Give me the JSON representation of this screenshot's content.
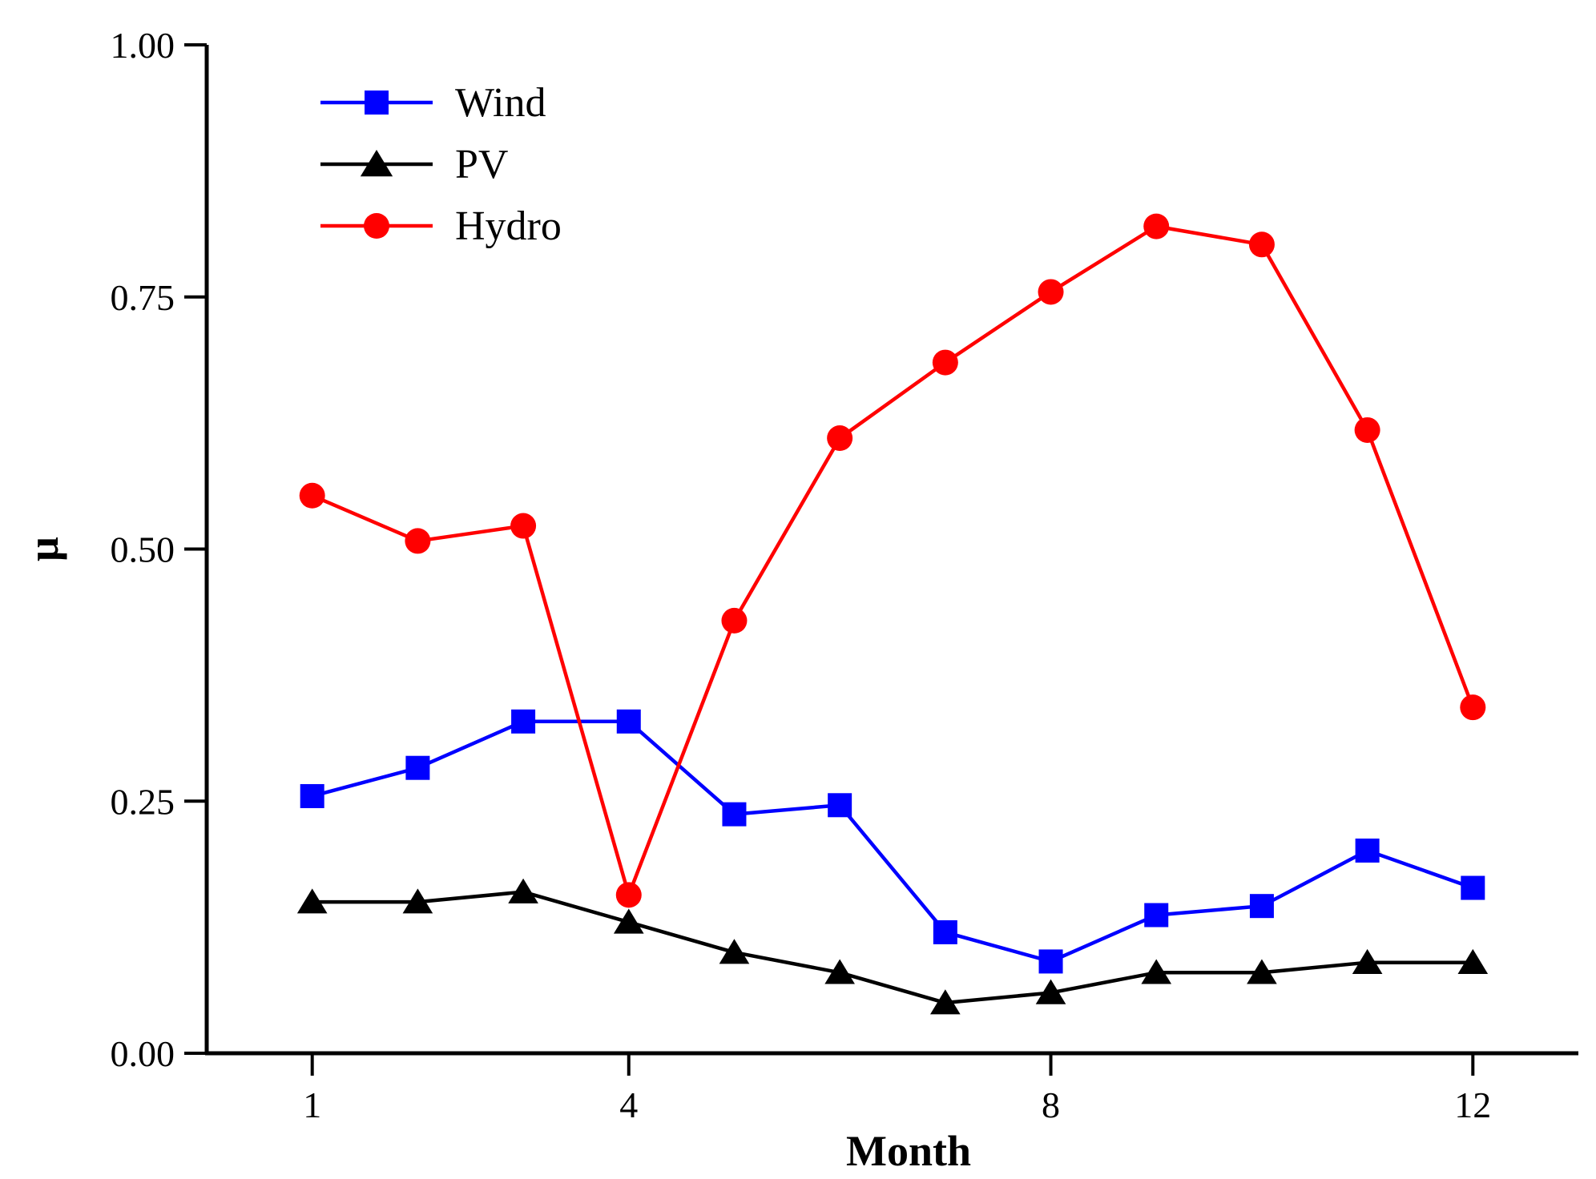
{
  "chart_data": {
    "type": "line",
    "title": "",
    "xlabel": "Month",
    "ylabel": "μ",
    "xlim": [
      0,
      13
    ],
    "ylim": [
      0,
      1
    ],
    "x_ticks": [
      1,
      4,
      8,
      12
    ],
    "x_tick_labels": [
      "1",
      "4",
      "8",
      "12"
    ],
    "y_ticks": [
      0,
      0.25,
      0.5,
      0.75,
      1.0
    ],
    "y_tick_labels": [
      "0.00",
      "0.25",
      "0.50",
      "0.75",
      "1.00"
    ],
    "grid": false,
    "legend_position": "top-left",
    "x": [
      1,
      2,
      3,
      4,
      5,
      6,
      7,
      8,
      9,
      10,
      11,
      12
    ],
    "series": [
      {
        "name": "Wind",
        "color": "#0000ff",
        "marker": "square",
        "values": [
          0.255,
          0.283,
          0.329,
          0.329,
          0.237,
          0.246,
          0.12,
          0.091,
          0.137,
          0.146,
          0.201,
          0.164
        ]
      },
      {
        "name": "PV",
        "color": "#000000",
        "marker": "triangle",
        "values": [
          0.15,
          0.15,
          0.16,
          0.13,
          0.1,
          0.08,
          0.05,
          0.06,
          0.08,
          0.08,
          0.09,
          0.09
        ]
      },
      {
        "name": "Hydro",
        "color": "#ff0000",
        "marker": "circle",
        "values": [
          0.553,
          0.508,
          0.523,
          0.157,
          0.429,
          0.61,
          0.685,
          0.755,
          0.82,
          0.802,
          0.618,
          0.343
        ]
      }
    ]
  }
}
